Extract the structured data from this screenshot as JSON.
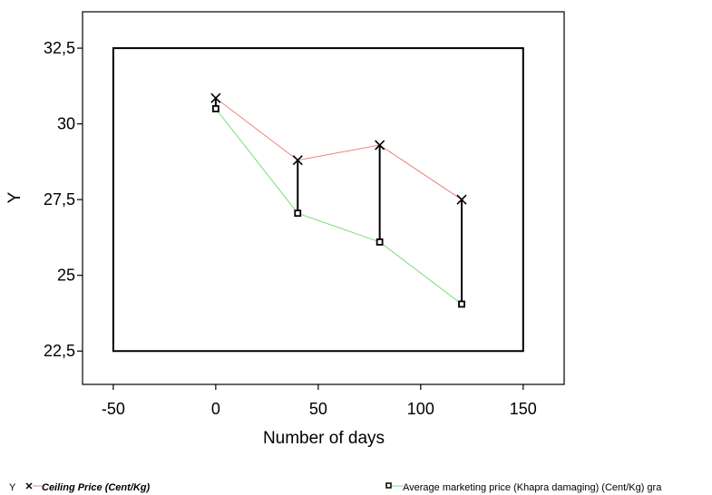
{
  "chart_data": {
    "type": "line",
    "xlabel": "Number of days",
    "ylabel": "Y",
    "xlim": [
      -65,
      170
    ],
    "ylim": [
      21.4,
      33.7
    ],
    "frame_x": [
      -50,
      150
    ],
    "frame_y": [
      22.5,
      32.5
    ],
    "x_ticks": [
      -50,
      0,
      50,
      100,
      150
    ],
    "x_tick_labels": [
      "-50",
      "0",
      "50",
      "100",
      "150"
    ],
    "y_ticks": [
      22.5,
      25,
      27.5,
      30,
      32.5
    ],
    "y_tick_labels": [
      "22,5",
      "25",
      "27,5",
      "30",
      "32,5"
    ],
    "x": [
      0,
      40,
      80,
      120
    ],
    "series": [
      {
        "name": "Ceiling Price (Cent/Kg)",
        "marker": "x",
        "color": "#f08080",
        "values": [
          30.85,
          28.8,
          29.3,
          27.5
        ]
      },
      {
        "name": "Average marketing price (Khapra damaging) (Cent/Kg) gra",
        "marker": "square",
        "color": "#7ddc7d",
        "values": [
          30.5,
          27.05,
          26.1,
          24.05
        ]
      }
    ],
    "drop_lines": true,
    "grid": false
  },
  "legend": {
    "y_label": "Y",
    "ceiling_label": "Ceiling Price (Cent/Kg)",
    "average_label": "Average marketing price (Khapra damaging) (Cent/Kg) gra"
  }
}
